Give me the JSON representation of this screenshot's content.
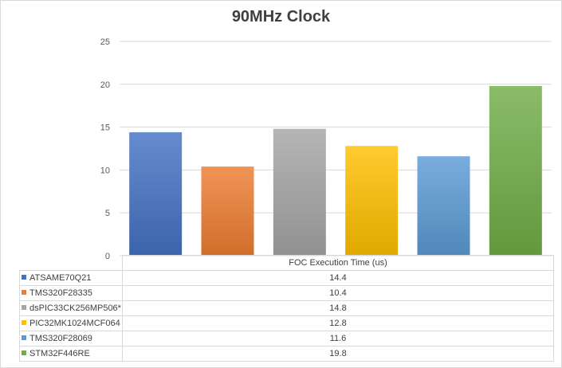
{
  "chart_data": {
    "type": "bar",
    "title": "90MHz Clock",
    "xlabel": "FOC Execution Time (us)",
    "ylim": [
      0,
      25
    ],
    "yticks": [
      0,
      5,
      10,
      15,
      20,
      25
    ],
    "grid": true,
    "legend": "data-table-below",
    "series": [
      {
        "name": "ATSAME70Q21",
        "value": 14.4,
        "color": "#4472c4",
        "value_label": "14.4"
      },
      {
        "name": "TMS320F28335",
        "value": 10.4,
        "color": "#ed7d31",
        "value_label": "10.4"
      },
      {
        "name": "dsPIC33CK256MP506*",
        "value": 14.8,
        "color": "#a5a5a5",
        "value_label": "14.8"
      },
      {
        "name": "PIC32MK1024MCF064",
        "value": 12.8,
        "color": "#ffc000",
        "value_label": "12.8"
      },
      {
        "name": "TMS320F28069",
        "value": 11.6,
        "color": "#5b9bd5",
        "value_label": "11.6"
      },
      {
        "name": "STM32F446RE",
        "value": 19.8,
        "color": "#70ad47",
        "value_label": "19.8"
      }
    ]
  }
}
